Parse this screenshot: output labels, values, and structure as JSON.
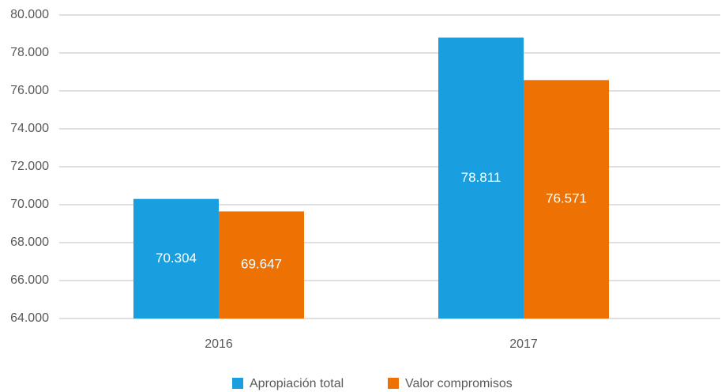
{
  "chart_data": {
    "type": "bar",
    "categories": [
      "2016",
      "2017"
    ],
    "series": [
      {
        "name": "Apropiación total",
        "color": "#199fe0",
        "values": [
          70304,
          78811
        ],
        "value_labels": [
          "70.304",
          "78.811"
        ]
      },
      {
        "name": "Valor compromisos",
        "color": "#ee7203",
        "values": [
          69647,
          76571
        ],
        "value_labels": [
          "69.647",
          "76.571"
        ]
      }
    ],
    "ylim": [
      64000,
      80000
    ],
    "yticks": [
      {
        "value": 64000,
        "label": "64.000"
      },
      {
        "value": 66000,
        "label": "66.000"
      },
      {
        "value": 68000,
        "label": "68.000"
      },
      {
        "value": 70000,
        "label": "70.000"
      },
      {
        "value": 72000,
        "label": "72.000"
      },
      {
        "value": 74000,
        "label": "74.000"
      },
      {
        "value": 76000,
        "label": "76.000"
      },
      {
        "value": 78000,
        "label": "78.000"
      },
      {
        "value": 80000,
        "label": "80.000"
      }
    ],
    "grid": true,
    "legend": "bottom"
  }
}
